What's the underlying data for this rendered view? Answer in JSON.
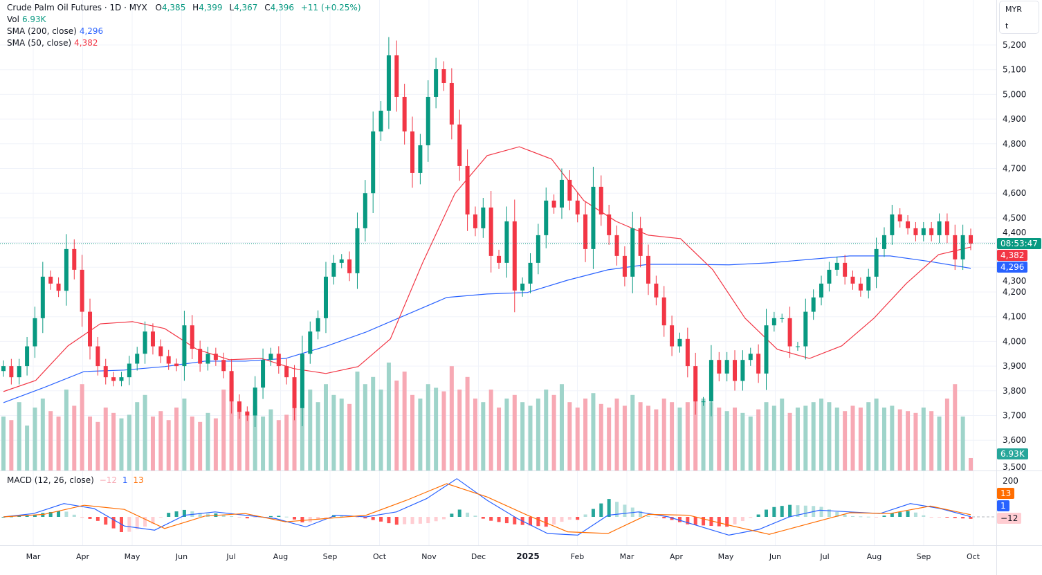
{
  "header": {
    "symbol": "Crude Palm Oil Futures · 1D · MYX",
    "open_label": "O",
    "open": "4,385",
    "high_label": "H",
    "high": "4,399",
    "low_label": "L",
    "low": "4,367",
    "close_label": "C",
    "close": "4,396",
    "change": "+11 (+0.25%)"
  },
  "indicators": {
    "vol_label": "Vol",
    "vol_value": "6.93K",
    "sma200_label": "SMA (200, close)",
    "sma200_value": "4,296",
    "sma50_label": "SMA (50, close)",
    "sma50_value": "4,382",
    "macd_label": "MACD (12, 26, close)",
    "macd_hist": "−12",
    "macd_line": "1",
    "macd_signal": "13"
  },
  "currency_box": {
    "currency": "MYR",
    "unit": "t"
  },
  "price_tags": {
    "countdown": "08:53:47",
    "sma50": "4,382",
    "sma200": "4,296",
    "volume": "6.93K",
    "macd_signal": "13",
    "macd_line": "1",
    "macd_hist": "−12",
    "macd_axis_label": "200"
  },
  "colors": {
    "up": "#089981",
    "down": "#f23645",
    "sma200": "#2962ff",
    "sma50": "#f23645",
    "signal": "#ff6d00",
    "vol_up": "#9fd4ca",
    "vol_down": "#f7a9b4"
  },
  "chart_data": {
    "type": "candlestick",
    "title": "Crude Palm Oil Futures · 1D · MYX",
    "x_tick_labels": [
      "Mar",
      "Apr",
      "May",
      "Jun",
      "Jul",
      "Aug",
      "Sep",
      "Oct",
      "Nov",
      "Dec",
      "2025",
      "Feb",
      "Mar",
      "Apr",
      "May",
      "Jun",
      "Jul",
      "Aug",
      "Sep",
      "Oct"
    ],
    "y_tick_labels": [
      "5,200",
      "5,100",
      "5,000",
      "4,900",
      "4,800",
      "4,700",
      "4,600",
      "4,500",
      "4,400",
      "4,300",
      "4,200",
      "4,100",
      "4,000",
      "3,900",
      "3,800",
      "3,700",
      "3,600",
      "3,500"
    ],
    "y_ticks": [
      5200,
      5100,
      5000,
      4900,
      4800,
      4700,
      4600,
      4500,
      4400,
      4300,
      4200,
      4100,
      4000,
      3900,
      3800,
      3700,
      3600,
      3500
    ],
    "ylim": [
      3500,
      5200
    ],
    "last_price": 4396,
    "closes": [
      3900,
      3855,
      3900,
      3980,
      4094,
      4262,
      4234,
      4205,
      4374,
      4290,
      4120,
      3980,
      3900,
      3855,
      3840,
      3855,
      3910,
      3950,
      4040,
      3980,
      3940,
      3910,
      3900,
      4065,
      3970,
      3910,
      3950,
      3925,
      3880,
      3757,
      3715,
      3700,
      3813,
      3925,
      3950,
      3900,
      3855,
      3730,
      3950,
      4040,
      4094,
      4262,
      4318,
      4332,
      4276,
      4458,
      4600,
      4850,
      4934,
      5158,
      4990,
      4850,
      4682,
      4794,
      4990,
      5102,
      5046,
      4878,
      4710,
      4514,
      4458,
      4542,
      4346,
      4318,
      4486,
      4206,
      4234,
      4318,
      4430,
      4570,
      4542,
      4654,
      4570,
      4514,
      4374,
      4626,
      4514,
      4430,
      4346,
      4262,
      4458,
      4346,
      4234,
      4178,
      4065,
      3980,
      4010,
      3900,
      3757,
      3757,
      3925,
      3870,
      3925,
      3840,
      3925,
      3950,
      3870,
      4065,
      4094,
      4094,
      3980,
      3980,
      4120,
      4178,
      4234,
      4290,
      4318,
      4262,
      4234,
      4206,
      4262,
      4374,
      4430,
      4514,
      4486,
      4458,
      4430,
      4458,
      4430,
      4486,
      4430,
      4332,
      4430,
      4396
    ],
    "volumes_k": [
      30,
      28,
      38,
      25,
      35,
      40,
      33,
      30,
      45,
      36,
      48,
      30,
      27,
      35,
      32,
      29,
      31,
      38,
      42,
      30,
      33,
      28,
      35,
      40,
      30,
      27,
      32,
      29,
      45,
      50,
      38,
      33,
      36,
      30,
      34,
      28,
      31,
      40,
      35,
      45,
      38,
      48,
      42,
      40,
      37,
      55,
      48,
      52,
      45,
      60,
      50,
      55,
      42,
      40,
      48,
      46,
      44,
      58,
      45,
      52,
      40,
      38,
      45,
      35,
      40,
      42,
      38,
      36,
      40,
      45,
      42,
      48,
      38,
      35,
      40,
      43,
      37,
      35,
      40,
      36,
      42,
      38,
      36,
      34,
      40,
      38,
      35,
      38,
      45,
      40,
      38,
      35,
      33,
      35,
      32,
      30,
      34,
      38,
      36,
      40,
      32,
      35,
      36,
      38,
      40,
      38,
      35,
      33,
      36,
      35,
      38,
      40,
      35,
      36,
      34,
      33,
      32,
      35,
      33,
      30,
      40,
      48,
      30,
      6.93
    ],
    "sma200": [
      3752,
      3813,
      3878,
      3884,
      3898,
      3920,
      3920,
      3931,
      3980,
      4038,
      4108,
      4178,
      4192,
      4198,
      4248,
      4290,
      4312,
      4312,
      4310,
      4318,
      4332,
      4346,
      4346,
      4323,
      4296
    ],
    "sma50": [
      3797,
      3842,
      3982,
      4071,
      4080,
      4052,
      3968,
      3926,
      3931,
      3890,
      3870,
      3898,
      4010,
      4318,
      4598,
      4752,
      4788,
      4738,
      4570,
      4486,
      4430,
      4416,
      4290,
      4094,
      3968,
      3931,
      3982,
      4094,
      4234,
      4351,
      4382
    ],
    "macd": {
      "y_tick_labels": [
        "200"
      ],
      "macd_line": [
        0,
        20,
        80,
        50,
        -55,
        -80,
        10,
        30,
        10,
        -10,
        -60,
        10,
        0,
        30,
        110,
        230,
        100,
        -10,
        -100,
        -110,
        10,
        30,
        0,
        -55,
        -110,
        -75,
        0,
        40,
        30,
        20,
        80,
        50,
        1
      ],
      "signal_line": [
        0,
        15,
        70,
        45,
        -70,
        5,
        20,
        -30,
        -10,
        10,
        100,
        200,
        120,
        10,
        -90,
        -100,
        15,
        10,
        -50,
        -105,
        -40,
        25,
        20,
        65,
        13
      ]
    }
  }
}
